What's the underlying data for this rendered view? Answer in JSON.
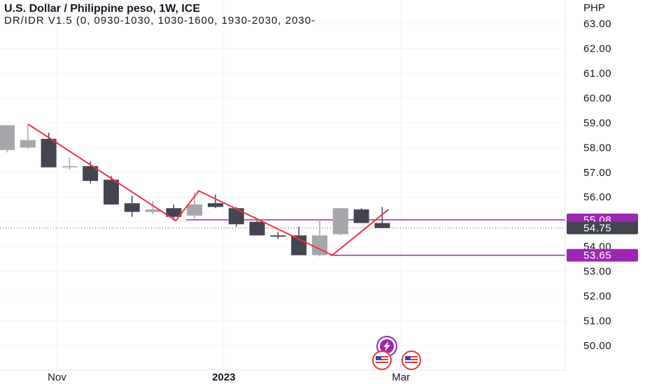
{
  "header": {
    "title": "U.S. Dollar / Philippine peso, 1W, ICE",
    "subtitle": "DR/IDR V1.5 (0, 0930-1030, 1030-1600, 1930-2030, 2030-",
    "currency": "PHP"
  },
  "colors": {
    "bear_candle": "#434651",
    "bull_candle": "#a5a7ad",
    "zigzag": "#ef3340",
    "level_line": "#9c27b0",
    "badge_purple": "#9c27b0",
    "badge_dark": "#434651",
    "current_price_dotted": "#9c27b0"
  },
  "icons": [
    "lightning-event-icon",
    "us-flag-icon",
    "us-flag-icon-2"
  ],
  "chart_data": {
    "type": "candlestick",
    "x_tick_labels": [
      {
        "label": "Nov",
        "week": 2.4
      },
      {
        "label": "2023",
        "week": 10.4
      },
      {
        "label": "Mar",
        "week": 18.9
      }
    ],
    "y_tick_labels": [
      "63.00",
      "62.00",
      "61.00",
      "60.00",
      "59.00",
      "58.00",
      "57.00",
      "56.00",
      "55.00",
      "54.00",
      "53.00",
      "52.00",
      "51.00",
      "50.00"
    ],
    "ylim": [
      49.0,
      63.6
    ],
    "candles": [
      {
        "o": 57.9,
        "h": 58.9,
        "l": 57.8,
        "c": 58.9
      },
      {
        "o": 58.0,
        "h": 58.9,
        "l": 57.95,
        "c": 58.3
      },
      {
        "o": 58.35,
        "h": 58.6,
        "l": 57.2,
        "c": 57.2
      },
      {
        "o": 57.2,
        "h": 57.6,
        "l": 57.1,
        "c": 57.25
      },
      {
        "o": 57.25,
        "h": 57.45,
        "l": 56.55,
        "c": 56.65
      },
      {
        "o": 56.7,
        "h": 56.85,
        "l": 55.7,
        "c": 55.7
      },
      {
        "o": 55.75,
        "h": 56.05,
        "l": 55.2,
        "c": 55.4
      },
      {
        "o": 55.4,
        "h": 55.85,
        "l": 55.3,
        "c": 55.5
      },
      {
        "o": 55.55,
        "h": 55.7,
        "l": 55.05,
        "c": 55.2
      },
      {
        "o": 55.25,
        "h": 56.2,
        "l": 55.1,
        "c": 55.7
      },
      {
        "o": 55.75,
        "h": 56.1,
        "l": 55.55,
        "c": 55.6
      },
      {
        "o": 55.55,
        "h": 55.6,
        "l": 54.8,
        "c": 54.9
      },
      {
        "o": 55.0,
        "h": 55.05,
        "l": 54.45,
        "c": 54.45
      },
      {
        "o": 54.45,
        "h": 54.6,
        "l": 54.3,
        "c": 54.4
      },
      {
        "o": 54.45,
        "h": 54.8,
        "l": 53.65,
        "c": 53.65
      },
      {
        "o": 53.65,
        "h": 55.1,
        "l": 53.6,
        "c": 54.45
      },
      {
        "o": 54.5,
        "h": 55.55,
        "l": 54.45,
        "c": 55.55
      },
      {
        "o": 55.5,
        "h": 55.55,
        "l": 54.95,
        "c": 54.95
      },
      {
        "o": 54.95,
        "h": 55.6,
        "l": 54.75,
        "c": 54.75
      }
    ],
    "zigzag": [
      {
        "week": 1,
        "price": 58.95
      },
      {
        "week": 8.1,
        "price": 55.05
      },
      {
        "week": 9.2,
        "price": 56.25
      },
      {
        "week": 15.6,
        "price": 53.65
      },
      {
        "week": 18.3,
        "price": 55.5
      }
    ],
    "levels": [
      {
        "price": 55.08,
        "from_week": 8.6,
        "label": "55.08",
        "style": "purple"
      },
      {
        "price": 53.65,
        "from_week": 15.5,
        "label": "53.65",
        "style": "purple"
      }
    ],
    "current_price": {
      "price": 54.75,
      "label": "54.75"
    }
  }
}
